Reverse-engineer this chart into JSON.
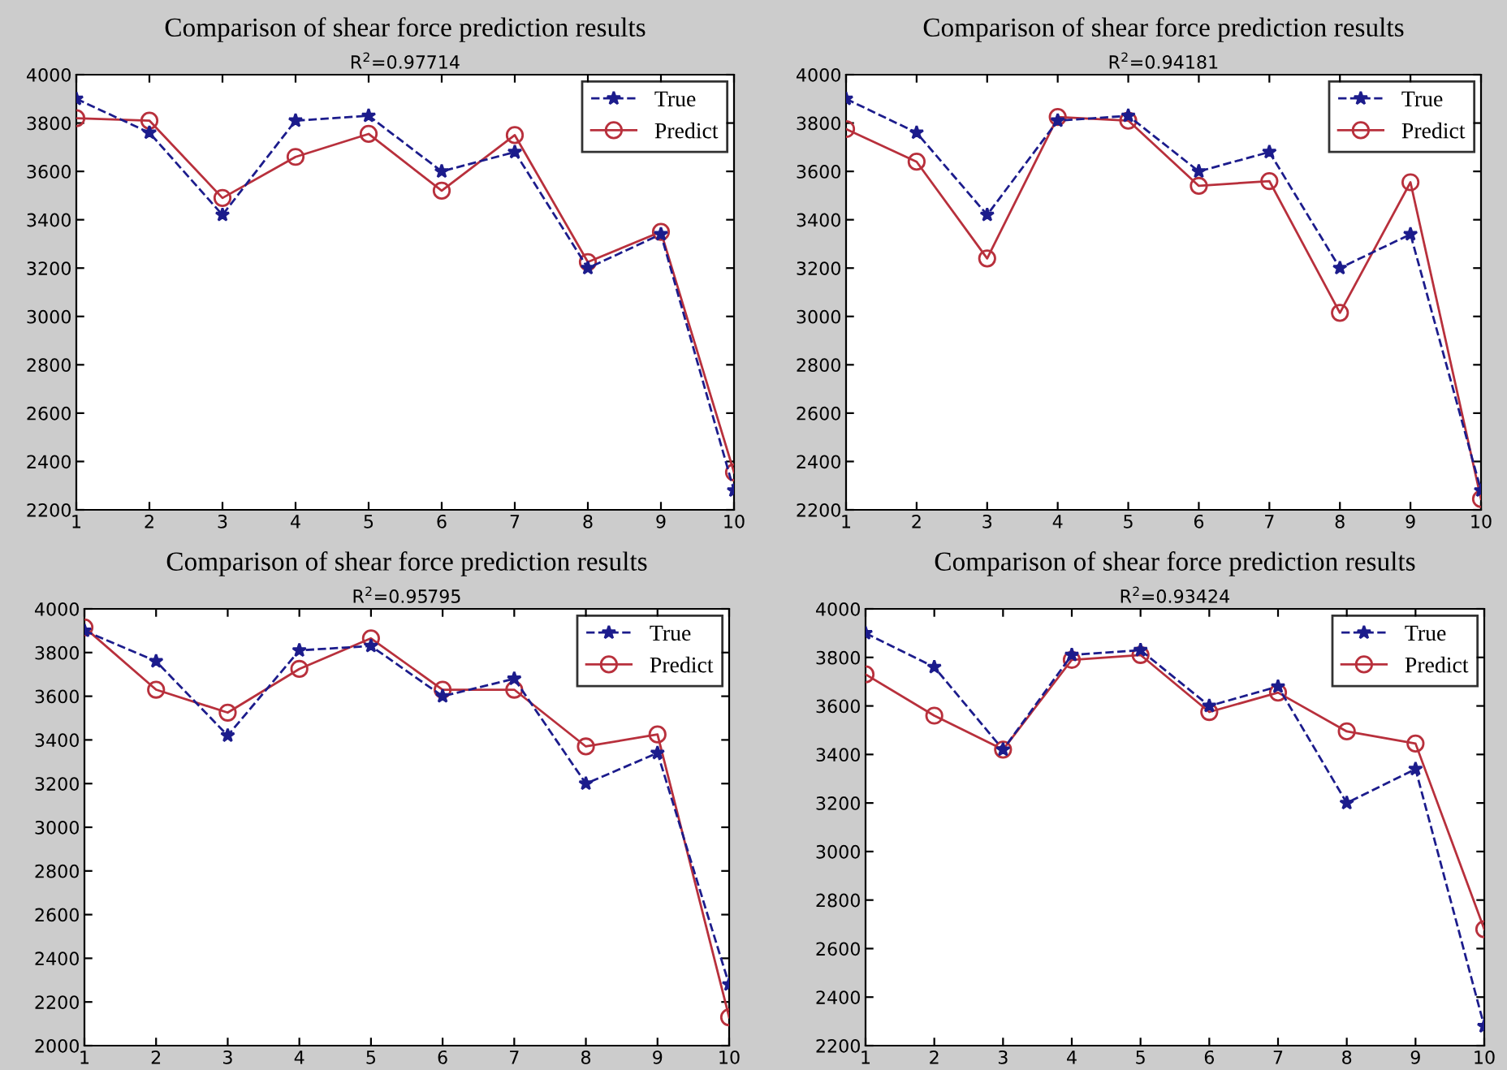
{
  "chart_data": [
    {
      "type": "line",
      "title": "Comparison of shear force prediction results",
      "subtitle": "R$^{2}$=0.97714",
      "x": [
        1,
        2,
        3,
        4,
        5,
        6,
        7,
        8,
        9,
        10
      ],
      "xlim": [
        1,
        10
      ],
      "xticks": [
        1,
        2,
        3,
        4,
        5,
        6,
        7,
        8,
        9,
        10
      ],
      "ylim": [
        2200,
        4000
      ],
      "yticks": [
        2200,
        2400,
        2600,
        2800,
        3000,
        3200,
        3400,
        3600,
        3800,
        4000
      ],
      "legend": "top right",
      "series": [
        {
          "name": "True",
          "color": "#1c1c8c",
          "marker": "star",
          "line_style": "dashed",
          "values": [
            3900,
            3760,
            3420,
            3810,
            3830,
            3600,
            3680,
            3200,
            3340,
            2280
          ]
        },
        {
          "name": "Predict",
          "color": "#b8303c",
          "marker": "circle",
          "line_style": "solid",
          "values": [
            3820,
            3810,
            3490,
            3660,
            3755,
            3520,
            3750,
            3225,
            3350,
            2355
          ]
        }
      ]
    },
    {
      "type": "line",
      "title": "Comparison of shear force prediction results",
      "subtitle": "R$^{2}$=0.94181",
      "x": [
        1,
        2,
        3,
        4,
        5,
        6,
        7,
        8,
        9,
        10
      ],
      "xlim": [
        1,
        10
      ],
      "xticks": [
        1,
        2,
        3,
        4,
        5,
        6,
        7,
        8,
        9,
        10
      ],
      "ylim": [
        2200,
        4000
      ],
      "yticks": [
        2200,
        2400,
        2600,
        2800,
        3000,
        3200,
        3400,
        3600,
        3800,
        4000
      ],
      "legend": "top right",
      "series": [
        {
          "name": "True",
          "color": "#1c1c8c",
          "marker": "star",
          "line_style": "dashed",
          "values": [
            3900,
            3760,
            3420,
            3810,
            3830,
            3600,
            3680,
            3200,
            3340,
            2280
          ]
        },
        {
          "name": "Predict",
          "color": "#b8303c",
          "marker": "circle",
          "line_style": "solid",
          "values": [
            3775,
            3640,
            3240,
            3825,
            3810,
            3540,
            3560,
            3015,
            3555,
            2245
          ]
        }
      ]
    },
    {
      "type": "line",
      "title": "Comparison of shear force prediction results",
      "subtitle": "R$^{2}$=0.95795",
      "x": [
        1,
        2,
        3,
        4,
        5,
        6,
        7,
        8,
        9,
        10
      ],
      "xlim": [
        1,
        10
      ],
      "xticks": [
        1,
        2,
        3,
        4,
        5,
        6,
        7,
        8,
        9,
        10
      ],
      "ylim": [
        2000,
        4000
      ],
      "yticks": [
        2000,
        2200,
        2400,
        2600,
        2800,
        3000,
        3200,
        3400,
        3600,
        3800,
        4000
      ],
      "legend": "top right",
      "series": [
        {
          "name": "True",
          "color": "#1c1c8c",
          "marker": "star",
          "line_style": "dashed",
          "values": [
            3900,
            3760,
            3420,
            3810,
            3830,
            3600,
            3680,
            3200,
            3340,
            2280
          ]
        },
        {
          "name": "Predict",
          "color": "#b8303c",
          "marker": "circle",
          "line_style": "solid",
          "values": [
            3915,
            3630,
            3525,
            3725,
            3865,
            3630,
            3630,
            3370,
            3425,
            2130
          ]
        }
      ]
    },
    {
      "type": "line",
      "title": "Comparison of shear force prediction results",
      "subtitle": "R$^{2}$=0.93424",
      "x": [
        1,
        2,
        3,
        4,
        5,
        6,
        7,
        8,
        9,
        10
      ],
      "xlim": [
        1,
        10
      ],
      "xticks": [
        1,
        2,
        3,
        4,
        5,
        6,
        7,
        8,
        9,
        10
      ],
      "ylim": [
        2200,
        4000
      ],
      "yticks": [
        2200,
        2400,
        2600,
        2800,
        3000,
        3200,
        3400,
        3600,
        3800,
        4000
      ],
      "legend": "top right",
      "series": [
        {
          "name": "True",
          "color": "#1c1c8c",
          "marker": "star",
          "line_style": "dashed",
          "values": [
            3900,
            3760,
            3420,
            3810,
            3830,
            3600,
            3680,
            3200,
            3340,
            2280
          ]
        },
        {
          "name": "Predict",
          "color": "#b8303c",
          "marker": "circle",
          "line_style": "solid",
          "values": [
            3730,
            3560,
            3420,
            3790,
            3810,
            3575,
            3655,
            3495,
            3445,
            2680
          ]
        }
      ]
    }
  ]
}
